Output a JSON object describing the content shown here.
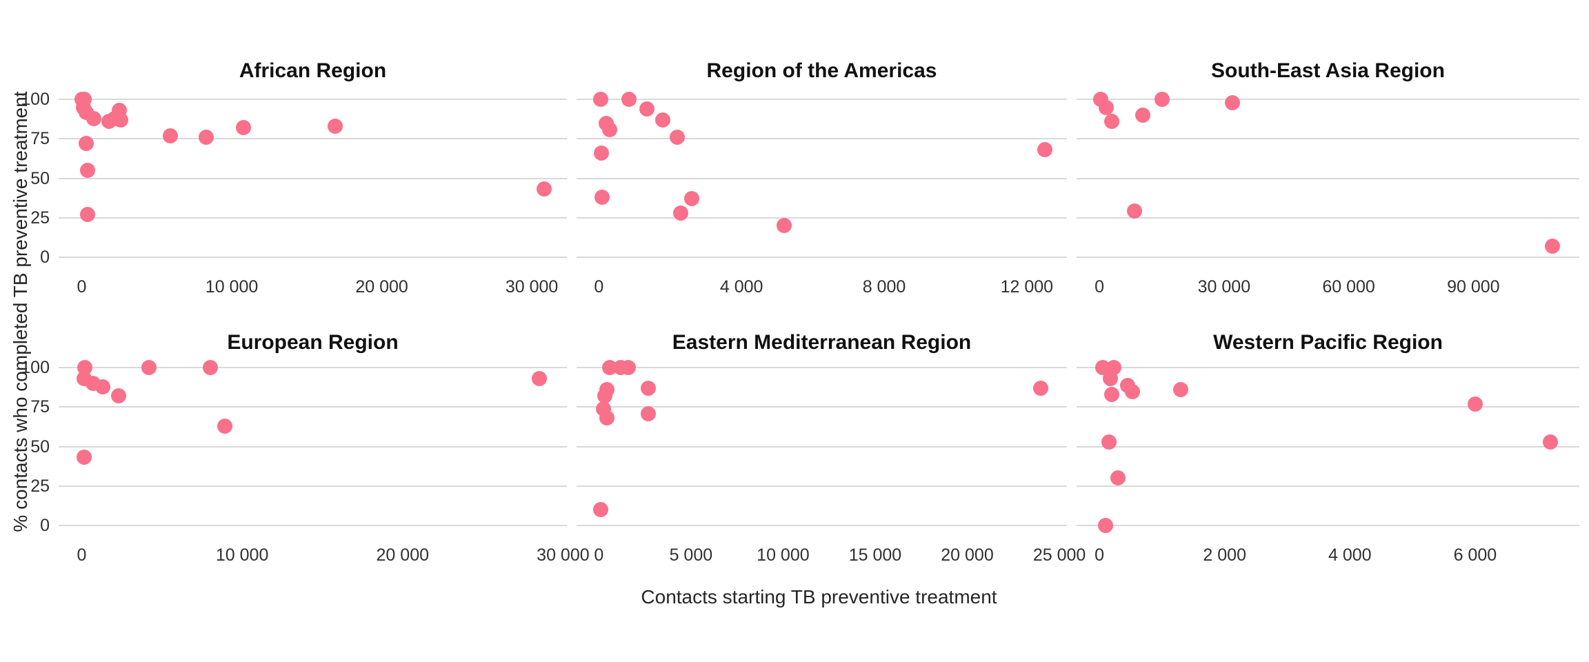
{
  "figure": {
    "x_axis_label": "Contacts starting TB preventive treatment",
    "y_axis_label": "% contacts who completed TB preventive treatment"
  },
  "colors": {
    "point": "#F8708A",
    "gridline": "#D9D9D9",
    "title_text": "#111111",
    "tick_text": "#303030",
    "axis_label_text": "#262626",
    "background": "#FFFFFF"
  },
  "chart_data": {
    "type": "scatter",
    "facet_layout": "2 rows x 3 columns, shared y axis (0-100), free x scales",
    "title": "",
    "xlabel": "Contacts starting TB preventive treatment",
    "ylabel": "% contacts who completed TB preventive treatment",
    "grid": "horizontal gridlines only",
    "legend": "none",
    "ylim": [
      -5,
      105
    ],
    "y_ticks": [
      {
        "v": 100,
        "label": "100"
      },
      {
        "v": 75,
        "label": "75"
      },
      {
        "v": 50,
        "label": "50"
      },
      {
        "v": 25,
        "label": "25"
      },
      {
        "v": 0,
        "label": "0"
      }
    ],
    "panels": [
      {
        "title": "African Region",
        "xlim": [
          -1540,
          32340
        ],
        "x_ticks": [
          {
            "v": 0,
            "label": "0"
          },
          {
            "v": 10000,
            "label": "10 000"
          },
          {
            "v": 20000,
            "label": "20 000"
          },
          {
            "v": 30000,
            "label": "30 000"
          }
        ],
        "points": [
          [
            0,
            100
          ],
          [
            150,
            100
          ],
          [
            100,
            95
          ],
          [
            300,
            92
          ],
          [
            800,
            88
          ],
          [
            1800,
            86
          ],
          [
            2200,
            88
          ],
          [
            2500,
            93
          ],
          [
            2600,
            87
          ],
          [
            300,
            72
          ],
          [
            400,
            55
          ],
          [
            400,
            27
          ],
          [
            5900,
            77
          ],
          [
            8300,
            76
          ],
          [
            10800,
            82
          ],
          [
            16900,
            83
          ],
          [
            30800,
            43
          ]
        ]
      },
      {
        "title": "Region of the Americas",
        "xlim": [
          -625,
          13125
        ],
        "x_ticks": [
          {
            "v": 0,
            "label": "0"
          },
          {
            "v": 4000,
            "label": "4 000"
          },
          {
            "v": 8000,
            "label": "8 000"
          },
          {
            "v": 12000,
            "label": "12 000"
          }
        ],
        "points": [
          [
            50,
            100
          ],
          [
            850,
            100
          ],
          [
            1350,
            94
          ],
          [
            1800,
            87
          ],
          [
            200,
            85
          ],
          [
            300,
            81
          ],
          [
            2200,
            76
          ],
          [
            75,
            66
          ],
          [
            100,
            38
          ],
          [
            2600,
            37
          ],
          [
            2300,
            28
          ],
          [
            5200,
            20
          ],
          [
            12500,
            68
          ]
        ]
      },
      {
        "title": "South-East Asia Region",
        "xlim": [
          -5500,
          115500
        ],
        "x_ticks": [
          {
            "v": 0,
            "label": "0"
          },
          {
            "v": 30000,
            "label": "30 000"
          },
          {
            "v": 60000,
            "label": "60 000"
          },
          {
            "v": 90000,
            "label": "90 000"
          }
        ],
        "points": [
          [
            300,
            100
          ],
          [
            1600,
            95
          ],
          [
            3000,
            86
          ],
          [
            10500,
            90
          ],
          [
            15000,
            100
          ],
          [
            32000,
            98
          ],
          [
            8500,
            29
          ],
          [
            109000,
            7
          ]
        ]
      },
      {
        "title": "European Region",
        "xlim": [
          -1440,
          30240
        ],
        "x_ticks": [
          {
            "v": 0,
            "label": "0"
          },
          {
            "v": 10000,
            "label": "10 000"
          },
          {
            "v": 20000,
            "label": "20 000"
          },
          {
            "v": 30000,
            "label": "30 000"
          }
        ],
        "points": [
          [
            200,
            100
          ],
          [
            150,
            93
          ],
          [
            700,
            90
          ],
          [
            1300,
            88
          ],
          [
            2300,
            82
          ],
          [
            4200,
            100
          ],
          [
            8000,
            100
          ],
          [
            8900,
            63
          ],
          [
            150,
            43
          ],
          [
            28500,
            93
          ]
        ]
      },
      {
        "title": "Eastern Mediterranean Region",
        "xlim": [
          -1210,
          25410
        ],
        "x_ticks": [
          {
            "v": 0,
            "label": "0"
          },
          {
            "v": 5000,
            "label": "5 000"
          },
          {
            "v": 10000,
            "label": "10 000"
          },
          {
            "v": 15000,
            "label": "15 000"
          },
          {
            "v": 20000,
            "label": "20 000"
          },
          {
            "v": 25000,
            "label": "25 000"
          }
        ],
        "points": [
          [
            600,
            100
          ],
          [
            1200,
            100
          ],
          [
            1600,
            100
          ],
          [
            450,
            86
          ],
          [
            330,
            82
          ],
          [
            2700,
            87
          ],
          [
            250,
            74
          ],
          [
            450,
            68
          ],
          [
            2700,
            71
          ],
          [
            100,
            10
          ],
          [
            24000,
            87
          ]
        ]
      },
      {
        "title": "Western Pacific Region",
        "xlim": [
          -365,
          7665
        ],
        "x_ticks": [
          {
            "v": 0,
            "label": "0"
          },
          {
            "v": 2000,
            "label": "2 000"
          },
          {
            "v": 4000,
            "label": "4 000"
          },
          {
            "v": 6000,
            "label": "6 000"
          }
        ],
        "points": [
          [
            50,
            100
          ],
          [
            230,
            100
          ],
          [
            180,
            93
          ],
          [
            200,
            83
          ],
          [
            450,
            89
          ],
          [
            530,
            85
          ],
          [
            1300,
            86
          ],
          [
            150,
            53
          ],
          [
            300,
            30
          ],
          [
            100,
            0
          ],
          [
            6000,
            77
          ],
          [
            7200,
            53
          ]
        ]
      }
    ]
  }
}
